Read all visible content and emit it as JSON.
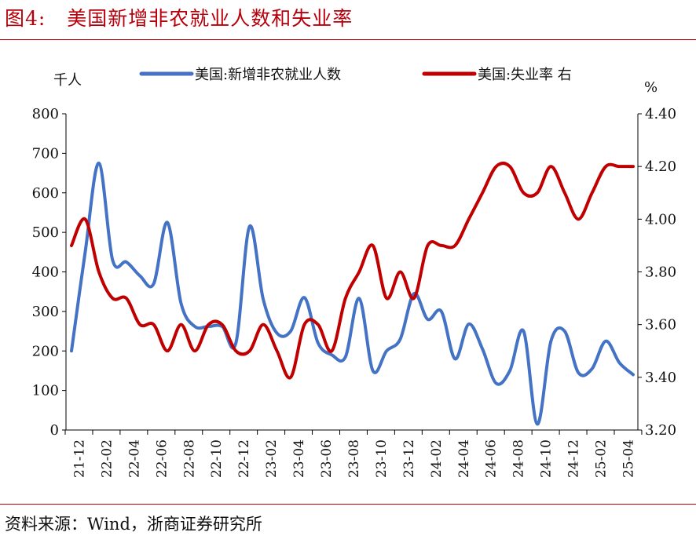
{
  "figure": {
    "label": "图4:",
    "title": "美国新增非农就业人数和失业率",
    "source": "资料来源：Wind，浙商证券研究所"
  },
  "colors": {
    "accent": "#b8000b",
    "series_blue": "#4472c4",
    "series_red": "#c00000"
  },
  "chart_data": {
    "type": "line",
    "left_axis_unit": "千人",
    "right_axis_unit": "%",
    "y_left": {
      "range": [
        0,
        800
      ],
      "ticks": [
        "0",
        "100",
        "200",
        "300",
        "400",
        "500",
        "600",
        "700",
        "800"
      ]
    },
    "y_right": {
      "range": [
        3.2,
        4.4
      ],
      "ticks": [
        "3.20",
        "3.40",
        "3.60",
        "3.80",
        "4.00",
        "4.20",
        "4.40"
      ]
    },
    "x_tick_labels": [
      "21-12",
      "22-02",
      "22-04",
      "22-06",
      "22-08",
      "22-10",
      "22-12",
      "23-02",
      "23-04",
      "23-06",
      "23-08",
      "23-10",
      "23-12",
      "24-02",
      "24-04",
      "24-06",
      "24-08",
      "24-10",
      "24-12",
      "25-02",
      "25-04"
    ],
    "grid": false,
    "legend_position": "top",
    "series": [
      {
        "name": "美国:新增非农就业人数",
        "axis": "left",
        "color": "#4472c4",
        "values": [
          200,
          450,
          675,
          430,
          425,
          390,
          370,
          525,
          320,
          262,
          262,
          262,
          220,
          515,
          330,
          245,
          250,
          335,
          220,
          190,
          185,
          333,
          150,
          200,
          230,
          345,
          280,
          300,
          180,
          268,
          205,
          118,
          150,
          250,
          15,
          225,
          250,
          145,
          155,
          225,
          170,
          140
        ]
      },
      {
        "name": "美国:失业率 右",
        "axis": "right",
        "color": "#c00000",
        "values": [
          3.9,
          4.0,
          3.8,
          3.7,
          3.7,
          3.6,
          3.6,
          3.5,
          3.6,
          3.5,
          3.6,
          3.6,
          3.5,
          3.5,
          3.6,
          3.5,
          3.4,
          3.6,
          3.6,
          3.5,
          3.7,
          3.8,
          3.9,
          3.7,
          3.8,
          3.7,
          3.9,
          3.9,
          3.9,
          4.0,
          4.1,
          4.2,
          4.2,
          4.1,
          4.1,
          4.2,
          4.1,
          4.0,
          4.1,
          4.2,
          4.2,
          4.2
        ]
      }
    ]
  }
}
